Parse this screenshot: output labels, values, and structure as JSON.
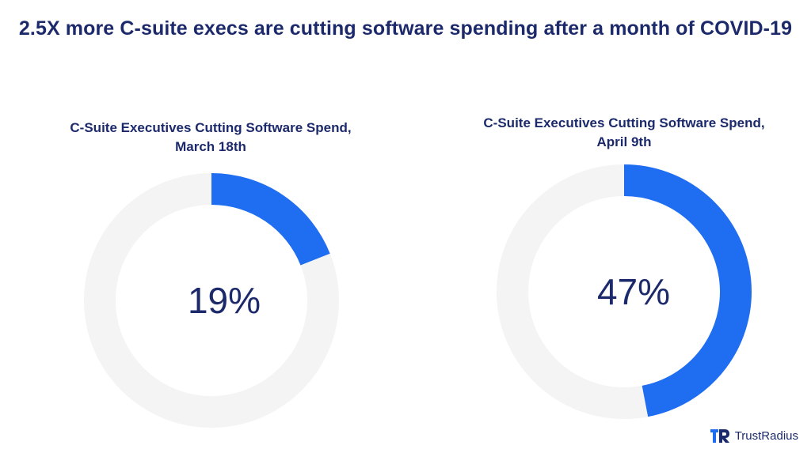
{
  "title": "2.5X more C-suite execs are cutting software spending after a month of COVID-19",
  "chart_data": [
    {
      "type": "pie",
      "title_line1": "C-Suite Executives Cutting Software Spend,",
      "title_line2": "March 18th",
      "value": 19,
      "label": "19%"
    },
    {
      "type": "pie",
      "title_line1": "C-Suite Executives Cutting Software Spend,",
      "title_line2": "April 9th",
      "value": 47,
      "label": "47%"
    }
  ],
  "brand": {
    "name": "TrustRadius"
  },
  "colors": {
    "accent": "#1f6df1",
    "track": "#e2e2e2",
    "text": "#1c2a6b"
  }
}
